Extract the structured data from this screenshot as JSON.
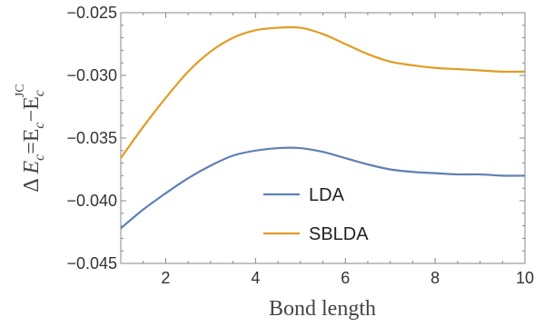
{
  "chart_data": {
    "type": "line",
    "xlabel": "Bond length",
    "ylabel": {
      "prefix": "Δ ",
      "E": "E",
      "c": "c",
      "eq": "=E",
      "minus": "−E",
      "sup": "JC"
    },
    "xlim": [
      1,
      10
    ],
    "ylim": [
      -0.045,
      -0.025
    ],
    "xticks": [
      2,
      4,
      6,
      8,
      10
    ],
    "yticks": [
      -0.045,
      -0.04,
      -0.035,
      -0.03,
      -0.025
    ],
    "xtick_labels": [
      "2",
      "4",
      "6",
      "8",
      "10"
    ],
    "ytick_labels": [
      "−0.045",
      "−0.040",
      "−0.035",
      "−0.030",
      "−0.025"
    ],
    "legend_position": "lower-center",
    "grid": false,
    "series": [
      {
        "name": "LDA",
        "color": "#5e81b5",
        "x": [
          1.0,
          1.5,
          2.0,
          2.5,
          3.0,
          3.5,
          4.0,
          4.5,
          5.0,
          5.5,
          6.0,
          6.5,
          7.0,
          7.5,
          8.0,
          8.5,
          9.0,
          9.5,
          10.0
        ],
        "y": [
          -0.0422,
          -0.0407,
          -0.0394,
          -0.0382,
          -0.0372,
          -0.0364,
          -0.036,
          -0.0358,
          -0.0358,
          -0.0361,
          -0.0366,
          -0.0371,
          -0.0375,
          -0.0377,
          -0.0378,
          -0.0379,
          -0.0379,
          -0.038,
          -0.038
        ]
      },
      {
        "name": "SBLDA",
        "color": "#e19c24",
        "x": [
          1.0,
          1.5,
          2.0,
          2.5,
          3.0,
          3.5,
          4.0,
          4.5,
          5.0,
          5.5,
          6.0,
          6.5,
          7.0,
          7.5,
          8.0,
          8.5,
          9.0,
          9.5,
          10.0
        ],
        "y": [
          -0.0366,
          -0.0341,
          -0.0318,
          -0.0297,
          -0.0281,
          -0.027,
          -0.0264,
          -0.0262,
          -0.0262,
          -0.0267,
          -0.0275,
          -0.0283,
          -0.0289,
          -0.0292,
          -0.0294,
          -0.0295,
          -0.0296,
          -0.0297,
          -0.0297
        ]
      }
    ]
  }
}
